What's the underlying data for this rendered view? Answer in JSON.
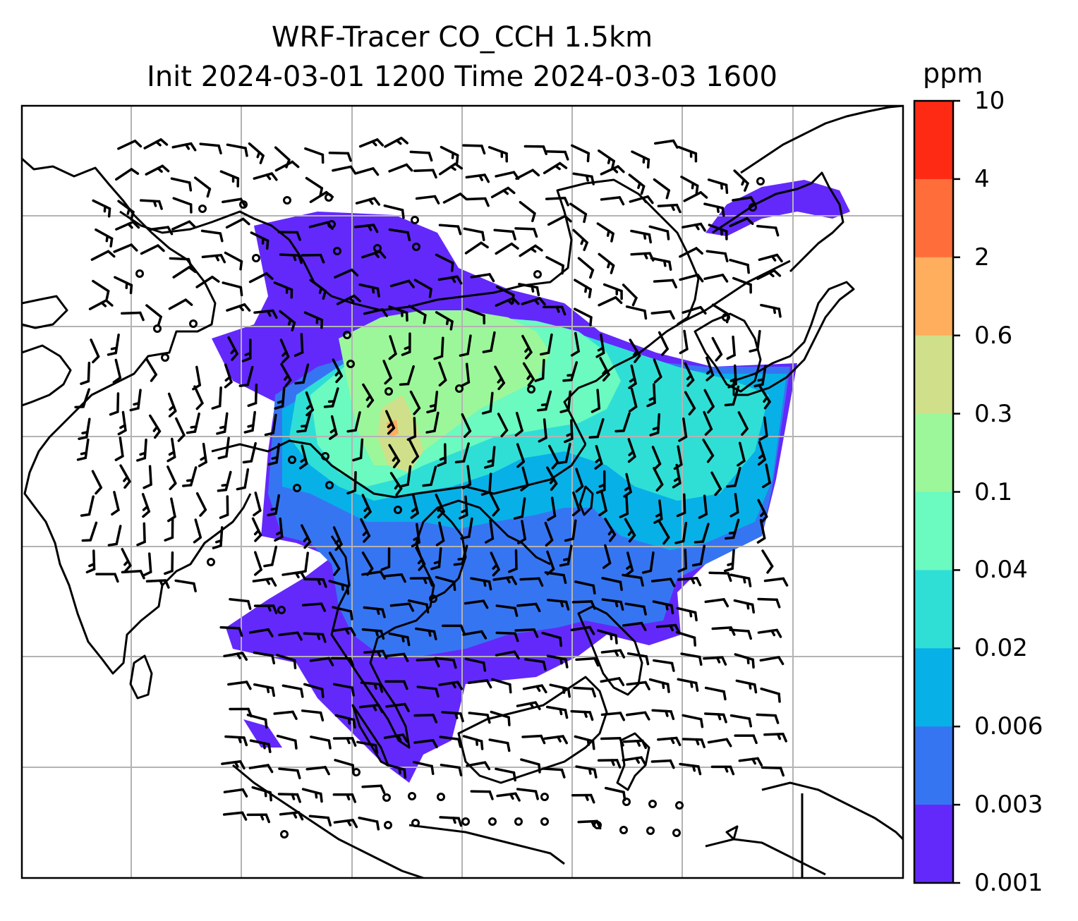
{
  "title": {
    "line1": "WRF-Tracer CO_CCH 1.5km",
    "line2": "Init 2024-03-01 1200 Time 2024-03-03 1600"
  },
  "colorbar": {
    "unit": "ppm",
    "ticks": [
      "10",
      "4",
      "2",
      "0.6",
      "0.3",
      "0.1",
      "0.04",
      "0.02",
      "0.006",
      "0.003",
      "0.001"
    ],
    "colors": [
      "#ff2a14",
      "#ff6e3a",
      "#ffae5e",
      "#d0e08a",
      "#9cf79a",
      "#6bfac0",
      "#2fdfd6",
      "#08b0e8",
      "#3675f2",
      "#6329fb"
    ]
  },
  "map": {
    "gridlines": true,
    "coastline_color": "#000000",
    "grid_color": "#b3b3b3",
    "wind_barbs": true
  }
}
